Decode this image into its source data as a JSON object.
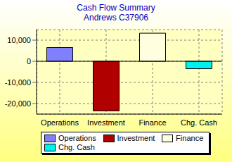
{
  "chart_data": {
    "type": "bar",
    "title": "Cash Flow Summary",
    "subtitle": "Andrews C37906",
    "categories": [
      "Operations",
      "Investment",
      "Finance",
      "Chg. Cash"
    ],
    "values": [
      6500,
      -23500,
      13300,
      -3500
    ],
    "colors": [
      "#8080ff",
      "#b00000",
      "#ffffe0",
      "#00f0f0"
    ],
    "ylim": [
      -25000,
      15000
    ],
    "yticks": [
      {
        "value": -20000,
        "label": "-20,000"
      },
      {
        "value": -10000,
        "label": "-10,000"
      },
      0,
      {
        "value": 10000,
        "label": "10,000"
      }
    ],
    "grid": true,
    "legend": "bottom"
  }
}
